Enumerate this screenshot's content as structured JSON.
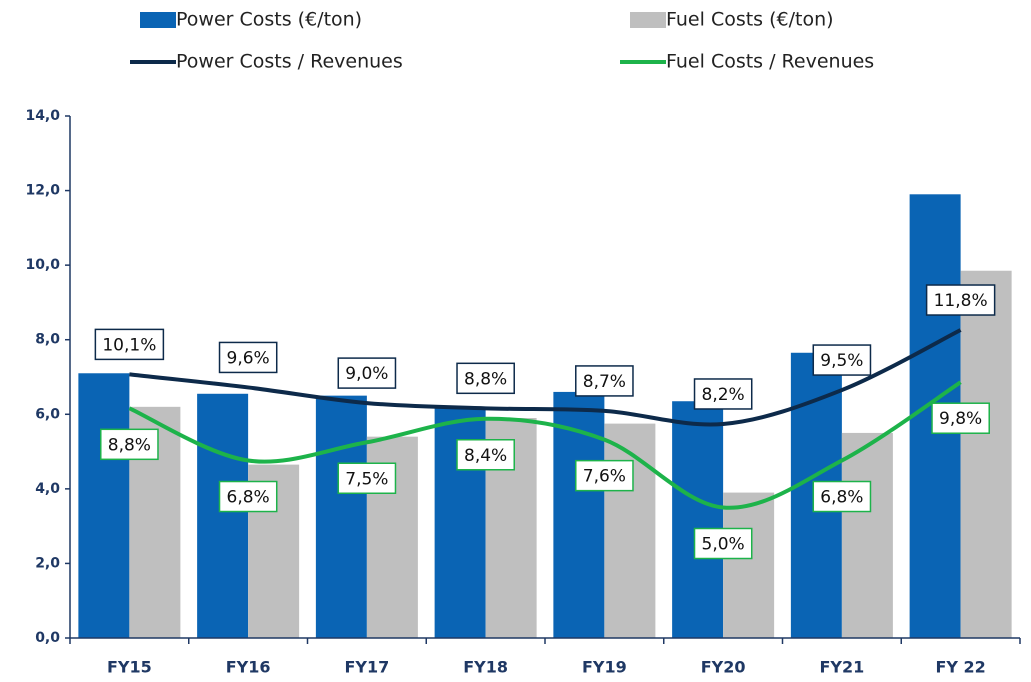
{
  "chart_data": {
    "type": "bar",
    "categories": [
      "FY15",
      "FY16",
      "FY17",
      "FY18",
      "FY19",
      "FY20",
      "FY21",
      "FY 22"
    ],
    "series": [
      {
        "name": "Power Costs (€/ton)",
        "color": "#0a64b4",
        "values": [
          7.1,
          6.55,
          6.5,
          6.2,
          6.6,
          6.35,
          7.65,
          11.9
        ]
      },
      {
        "name": "Fuel Costs  (€/ton)",
        "color": "#bfbfbf",
        "values": [
          6.2,
          4.65,
          5.4,
          5.9,
          5.75,
          3.9,
          5.5,
          9.85
        ]
      },
      {
        "name": "Power Costs / Revenues",
        "type": "line",
        "axis": "y2",
        "color": "#0d2a4a",
        "values": [
          10.1,
          9.6,
          9.0,
          8.8,
          8.7,
          8.2,
          9.5,
          11.8
        ],
        "value_labels": [
          "10,1%",
          "9,6%",
          "9,0%",
          "8,8%",
          "8,7%",
          "8,2%",
          "9,5%",
          "11,8%"
        ]
      },
      {
        "name": "Fuel Costs / Revenues",
        "type": "line",
        "axis": "y2",
        "color": "#1db34a",
        "values": [
          8.8,
          6.8,
          7.5,
          8.4,
          7.6,
          5.0,
          6.8,
          9.8
        ],
        "value_labels": [
          "8,8%",
          "6,8%",
          "7,5%",
          "8,4%",
          "7,6%",
          "5,0%",
          "6,8%",
          "9,8%"
        ]
      }
    ],
    "ylim": [
      0,
      14
    ],
    "yticks": [
      {
        "value": 0,
        "label": "0,0"
      },
      {
        "value": 2,
        "label": "2,0"
      },
      {
        "value": 4,
        "label": "4,0"
      },
      {
        "value": 6,
        "label": "6,0"
      },
      {
        "value": 8,
        "label": "8,0"
      },
      {
        "value": 10,
        "label": "10,0"
      },
      {
        "value": 12,
        "label": "12,0"
      },
      {
        "value": 14,
        "label": "14,0"
      }
    ],
    "y2lim": [
      0,
      20
    ]
  }
}
